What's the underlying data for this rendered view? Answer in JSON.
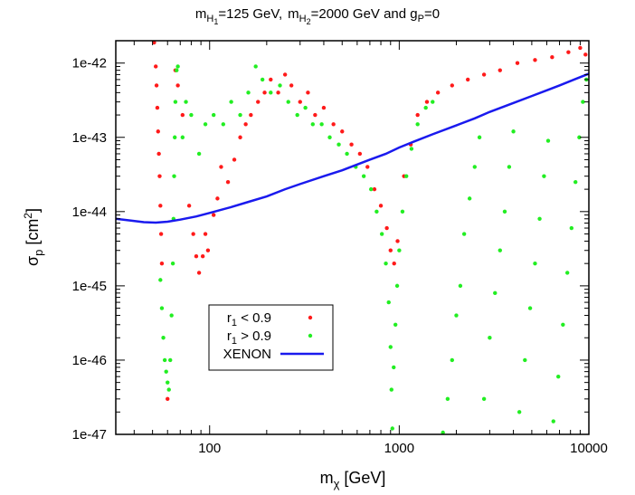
{
  "chart_data": {
    "type": "scatter",
    "title": {
      "m1": "m",
      "m1_sub": "H",
      "m1_subsub": "1",
      "m1_val": "=125 GeV,",
      "m2": "m",
      "m2_sub": "H",
      "m2_subsub": "2",
      "m2_val": "=2000 GeV and g",
      "g_sub": "P",
      "g_val": "=0"
    },
    "xlabel": {
      "base": "m",
      "sub": "χ",
      "unit": " [GeV]"
    },
    "ylabel": {
      "base": "σ",
      "sub": "p",
      "unit": " [cm",
      "sup": "2",
      "close": "]"
    },
    "x_scale": "log",
    "y_scale": "log",
    "xlim": [
      32,
      10000
    ],
    "ylim": [
      1e-47,
      2e-42
    ],
    "x_ticks": [
      {
        "value": 100,
        "label": "100"
      },
      {
        "value": 1000,
        "label": "1000"
      },
      {
        "value": 10000,
        "label": "10000"
      }
    ],
    "y_ticks": [
      {
        "value": 1e-42,
        "label": "1e-42"
      },
      {
        "value": 1e-43,
        "label": "1e-43"
      },
      {
        "value": 1e-44,
        "label": "1e-44"
      },
      {
        "value": 1e-45,
        "label": "1e-45"
      },
      {
        "value": 1e-46,
        "label": "1e-46"
      },
      {
        "value": 1e-47,
        "label": "1e-47"
      }
    ],
    "grid": false,
    "legend_position": "lower-left",
    "series": [
      {
        "name": "r1 < 0.9",
        "legend": {
          "base": "r",
          "sub": "1",
          "rest": " < 0.9"
        },
        "color": "#ff1a1a",
        "marker": "dot",
        "points": [
          [
            51,
            2e-42
          ],
          [
            52,
            9e-43
          ],
          [
            52.5,
            5e-43
          ],
          [
            53,
            2.5e-43
          ],
          [
            53.5,
            1.2e-43
          ],
          [
            54,
            6e-44
          ],
          [
            54.5,
            3e-44
          ],
          [
            55,
            1.2e-44
          ],
          [
            55.5,
            5e-45
          ],
          [
            56,
            2e-45
          ],
          [
            60,
            3e-47
          ],
          [
            66,
            8e-43
          ],
          [
            68,
            5e-43
          ],
          [
            72,
            2e-43
          ],
          [
            78,
            1.2e-44
          ],
          [
            82,
            5e-45
          ],
          [
            85,
            2.5e-45
          ],
          [
            88,
            1.5e-45
          ],
          [
            92,
            2.5e-45
          ],
          [
            95,
            5e-45
          ],
          [
            98,
            3e-45
          ],
          [
            105,
            9e-45
          ],
          [
            110,
            1.5e-44
          ],
          [
            115,
            4e-44
          ],
          [
            125,
            2.5e-44
          ],
          [
            135,
            5e-44
          ],
          [
            145,
            1e-43
          ],
          [
            155,
            1.5e-43
          ],
          [
            165,
            2e-43
          ],
          [
            180,
            3e-43
          ],
          [
            195,
            4e-43
          ],
          [
            210,
            6e-43
          ],
          [
            230,
            4e-43
          ],
          [
            250,
            7e-43
          ],
          [
            270,
            5e-43
          ],
          [
            300,
            3e-43
          ],
          [
            330,
            4e-43
          ],
          [
            360,
            2e-43
          ],
          [
            400,
            2.5e-43
          ],
          [
            450,
            1.5e-43
          ],
          [
            500,
            1.2e-43
          ],
          [
            560,
            8e-44
          ],
          [
            620,
            6e-44
          ],
          [
            680,
            4e-44
          ],
          [
            740,
            2e-44
          ],
          [
            800,
            1.2e-44
          ],
          [
            860,
            6e-45
          ],
          [
            900,
            3e-45
          ],
          [
            940,
            2e-45
          ],
          [
            980,
            4e-45
          ],
          [
            1060,
            3e-44
          ],
          [
            1150,
            8e-44
          ],
          [
            1250,
            2e-43
          ],
          [
            1400,
            3e-43
          ],
          [
            1600,
            4e-43
          ],
          [
            1900,
            5e-43
          ],
          [
            2300,
            6e-43
          ],
          [
            2800,
            7e-43
          ],
          [
            3400,
            8e-43
          ],
          [
            4200,
            1e-42
          ],
          [
            5200,
            1.1e-42
          ],
          [
            6400,
            1.2e-42
          ],
          [
            7800,
            1.4e-42
          ],
          [
            9000,
            1.6e-42
          ],
          [
            9600,
            1.3e-42
          ]
        ]
      },
      {
        "name": "r1 > 0.9",
        "legend": {
          "base": "r",
          "sub": "1",
          "rest": " > 0.9"
        },
        "color": "#22ee22",
        "marker": "dot",
        "points": [
          [
            55,
            1.2e-45
          ],
          [
            56,
            5e-46
          ],
          [
            57,
            2e-46
          ],
          [
            58,
            1e-46
          ],
          [
            59,
            7e-47
          ],
          [
            60,
            5e-47
          ],
          [
            61,
            4e-47
          ],
          [
            62,
            1e-46
          ],
          [
            63,
            4e-46
          ],
          [
            64,
            2e-45
          ],
          [
            64.5,
            8e-45
          ],
          [
            65,
            3e-44
          ],
          [
            65.5,
            1e-43
          ],
          [
            66,
            3e-43
          ],
          [
            67,
            8e-43
          ],
          [
            68,
            9e-43
          ],
          [
            72,
            1e-43
          ],
          [
            75,
            3e-43
          ],
          [
            80,
            2e-43
          ],
          [
            88,
            6e-44
          ],
          [
            95,
            1.5e-43
          ],
          [
            105,
            2e-43
          ],
          [
            118,
            1.5e-43
          ],
          [
            130,
            3e-43
          ],
          [
            145,
            2e-43
          ],
          [
            160,
            4e-43
          ],
          [
            175,
            9e-43
          ],
          [
            190,
            6e-43
          ],
          [
            210,
            4e-43
          ],
          [
            235,
            5e-43
          ],
          [
            260,
            3e-43
          ],
          [
            290,
            2e-43
          ],
          [
            320,
            2.5e-43
          ],
          [
            350,
            1.5e-43
          ],
          [
            390,
            1.5e-43
          ],
          [
            430,
            1e-43
          ],
          [
            480,
            8e-44
          ],
          [
            530,
            6e-44
          ],
          [
            590,
            4e-44
          ],
          [
            650,
            3e-44
          ],
          [
            710,
            2e-44
          ],
          [
            760,
            1e-44
          ],
          [
            810,
            5e-45
          ],
          [
            850,
            2e-45
          ],
          [
            880,
            6e-46
          ],
          [
            900,
            1.5e-46
          ],
          [
            910,
            4e-47
          ],
          [
            920,
            1.2e-47
          ],
          [
            935,
            8e-47
          ],
          [
            955,
            3e-46
          ],
          [
            975,
            1e-45
          ],
          [
            1000,
            3e-45
          ],
          [
            1040,
            1e-44
          ],
          [
            1090,
            3e-44
          ],
          [
            1160,
            7e-44
          ],
          [
            1250,
            1.5e-43
          ],
          [
            1380,
            2.5e-43
          ],
          [
            1500,
            3e-43
          ],
          [
            1700,
            1e-47
          ],
          [
            1800,
            3e-47
          ],
          [
            1900,
            1e-46
          ],
          [
            2000,
            4e-46
          ],
          [
            2100,
            1e-45
          ],
          [
            2200,
            5e-45
          ],
          [
            2350,
            1.5e-44
          ],
          [
            2500,
            4e-44
          ],
          [
            2650,
            1e-43
          ],
          [
            2800,
            3e-47
          ],
          [
            3000,
            2e-46
          ],
          [
            3200,
            8e-46
          ],
          [
            3400,
            3e-45
          ],
          [
            3600,
            1e-44
          ],
          [
            3800,
            4e-44
          ],
          [
            4000,
            1.2e-43
          ],
          [
            4300,
            2e-47
          ],
          [
            4600,
            1e-46
          ],
          [
            4900,
            5e-46
          ],
          [
            5200,
            2e-45
          ],
          [
            5500,
            8e-45
          ],
          [
            5800,
            3e-44
          ],
          [
            6100,
            9e-44
          ],
          [
            6500,
            1.5e-47
          ],
          [
            6900,
            6e-47
          ],
          [
            7300,
            3e-46
          ],
          [
            7700,
            1.5e-45
          ],
          [
            8100,
            6e-45
          ],
          [
            8500,
            2.5e-44
          ],
          [
            8900,
            1e-43
          ],
          [
            9300,
            3e-43
          ],
          [
            9700,
            6e-43
          ]
        ]
      },
      {
        "name": "XENON",
        "legend": {
          "base": "XENON",
          "sub": "",
          "rest": ""
        },
        "color": "#1a1aee",
        "marker": "line",
        "points": [
          [
            32,
            8e-45
          ],
          [
            38,
            7.6e-45
          ],
          [
            45,
            7.2e-45
          ],
          [
            52,
            7.1e-45
          ],
          [
            60,
            7.3e-45
          ],
          [
            70,
            7.8e-45
          ],
          [
            85,
            8.6e-45
          ],
          [
            100,
            9.6e-45
          ],
          [
            130,
            1.15e-44
          ],
          [
            160,
            1.35e-44
          ],
          [
            200,
            1.6e-44
          ],
          [
            250,
            2e-44
          ],
          [
            300,
            2.35e-44
          ],
          [
            400,
            3e-44
          ],
          [
            500,
            3.6e-44
          ],
          [
            600,
            4.3e-44
          ],
          [
            700,
            5e-44
          ],
          [
            850,
            6e-44
          ],
          [
            1000,
            7.3e-44
          ],
          [
            1200,
            8.8e-44
          ],
          [
            1500,
            1.1e-43
          ],
          [
            2000,
            1.45e-43
          ],
          [
            2500,
            1.8e-43
          ],
          [
            3000,
            2.2e-43
          ],
          [
            4000,
            2.9e-43
          ],
          [
            5000,
            3.6e-43
          ],
          [
            6000,
            4.3e-43
          ],
          [
            7000,
            5e-43
          ],
          [
            8500,
            6.1e-43
          ],
          [
            10000,
            7.2e-43
          ]
        ]
      }
    ]
  }
}
